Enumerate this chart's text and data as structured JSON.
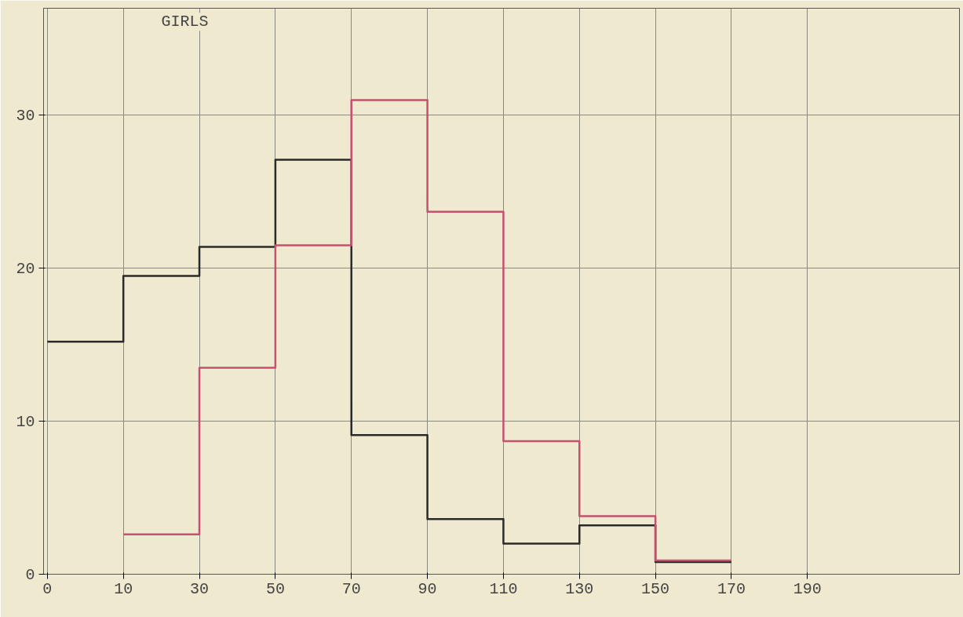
{
  "chart_data": {
    "type": "step",
    "title": "GIRLS",
    "categories": [
      "0",
      "10",
      "30",
      "50",
      "70",
      "90",
      "110",
      "130",
      "150",
      "170",
      "190"
    ],
    "series": [
      {
        "color": "#2a2a2a",
        "values": [
          15.2,
          19.5,
          21.4,
          27.1,
          9.1,
          3.6,
          2.0,
          3.2,
          0.8,
          0.8,
          null
        ]
      },
      {
        "color": "#c8506e",
        "values": [
          null,
          2.6,
          13.5,
          21.5,
          31.0,
          23.7,
          8.7,
          3.8,
          0.9,
          0.9,
          null
        ]
      }
    ],
    "ylim": [
      0,
      37
    ],
    "yticks": [
      0,
      10,
      20,
      30
    ],
    "grid": true
  }
}
